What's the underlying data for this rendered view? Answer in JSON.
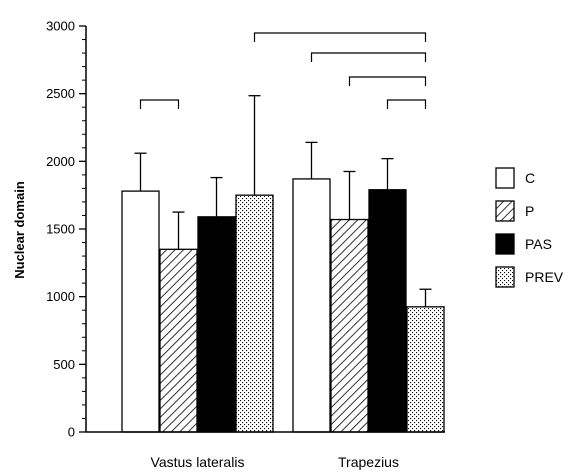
{
  "chart_data": {
    "type": "bar",
    "ylabel": "Nuclear domain",
    "ylim": [
      0,
      3000
    ],
    "yticks": [
      0,
      500,
      1000,
      1500,
      2000,
      2500,
      3000
    ],
    "grid": false,
    "legend_position": "right",
    "categories": [
      "Vastus lateralis",
      "Trapezius"
    ],
    "series": [
      {
        "name": "C",
        "pattern": "white",
        "values": [
          1780,
          1870
        ],
        "errors": [
          280,
          270
        ]
      },
      {
        "name": "P",
        "pattern": "diagonal",
        "values": [
          1350,
          1570
        ],
        "errors": [
          275,
          355
        ]
      },
      {
        "name": "PAS",
        "pattern": "black",
        "values": [
          1590,
          1790
        ],
        "errors": [
          290,
          230
        ]
      },
      {
        "name": "PREV",
        "pattern": "dotted",
        "values": [
          1750,
          925
        ],
        "errors": [
          735,
          130
        ]
      }
    ],
    "significance_brackets": [
      {
        "category": "Vastus lateralis",
        "from_series": "C",
        "to_series": "P"
      },
      {
        "category": "Trapezius",
        "from_series": "PREV",
        "to_series": "PREV",
        "from_category": "Vastus lateralis"
      },
      {
        "category": "Trapezius",
        "from_series": "C",
        "to_series": "PREV"
      },
      {
        "category": "Trapezius",
        "from_series": "P",
        "to_series": "PREV"
      },
      {
        "category": "Trapezius",
        "from_series": "PAS",
        "to_series": "PREV"
      }
    ]
  },
  "colors": {
    "axis": "#000000",
    "bar_stroke": "#000000",
    "black_fill": "#000000",
    "white_fill": "#ffffff"
  }
}
